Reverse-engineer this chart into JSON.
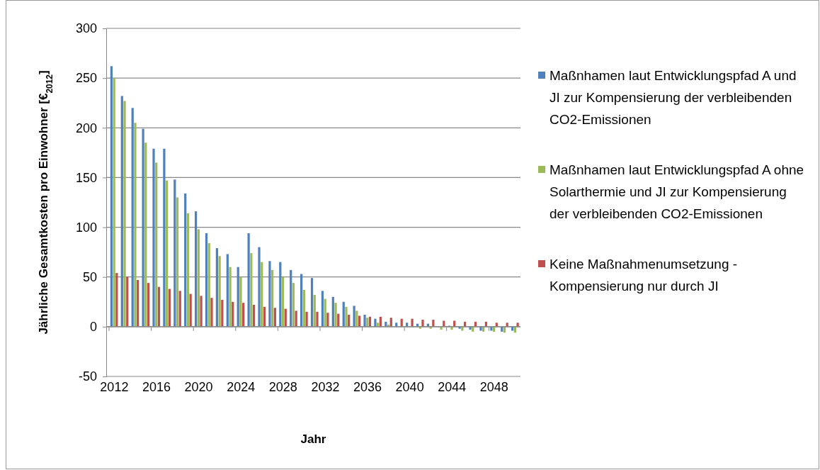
{
  "chart_data": {
    "type": "bar",
    "xlabel": "Jahr",
    "ylabel": "Jährliche Gesamtkosten pro Einwohner [€$_{2012}$]",
    "categories": [
      "2012",
      null,
      null,
      null,
      "2016",
      null,
      null,
      null,
      "2020",
      null,
      null,
      null,
      "2024",
      null,
      null,
      null,
      "2028",
      null,
      null,
      null,
      "2032",
      null,
      null,
      null,
      "2036",
      null,
      null,
      null,
      "2040",
      null,
      null,
      null,
      "2044",
      null,
      null,
      null,
      "2048",
      null,
      null
    ],
    "series": [
      {
        "name": "Maßnhamen laut Entwicklungspfad A und JI zur Kompensierung der verbleibenden CO2-Emissionen",
        "color": "#4f81bd",
        "values": [
          262,
          232,
          220,
          199,
          179,
          179,
          148,
          134,
          116,
          94,
          79,
          73,
          60,
          94,
          80,
          66,
          65,
          57,
          53,
          49,
          36,
          30,
          25,
          21,
          12,
          8,
          5,
          4,
          4,
          3,
          3,
          0,
          1,
          -2,
          -3,
          -4,
          -4,
          -5,
          -4
        ]
      },
      {
        "name": "Maßnhamen laut Entwicklungspfad A ohne Solarthermie und JI zur Kompensierung der verbleibenden CO2-Emissionen",
        "color": "#9bbb59",
        "values": [
          250,
          227,
          205,
          185,
          165,
          147,
          130,
          114,
          98,
          84,
          71,
          60,
          50,
          74,
          65,
          57,
          50,
          44,
          37,
          32,
          28,
          24,
          20,
          16,
          9,
          4,
          2,
          0,
          0,
          -2,
          -2,
          -3,
          -3,
          -4,
          -5,
          -5,
          -5,
          -6,
          -6
        ]
      },
      {
        "name": "Keine Maßnahmenumsetzung - Kompensierung nur durch JI",
        "color": "#c0504d",
        "values": [
          54,
          50,
          47,
          44,
          40,
          38,
          36,
          33,
          31,
          29,
          27,
          25,
          24,
          22,
          20,
          19,
          18,
          16,
          15,
          15,
          14,
          13,
          12,
          11,
          10,
          10,
          9,
          8,
          8,
          7,
          7,
          6,
          6,
          5,
          5,
          5,
          4,
          4,
          4
        ]
      }
    ],
    "ylim": [
      -50,
      300
    ],
    "yticks": [
      -50,
      0,
      50,
      100,
      150,
      200,
      250,
      300
    ],
    "grid": "y",
    "legend": "right"
  }
}
